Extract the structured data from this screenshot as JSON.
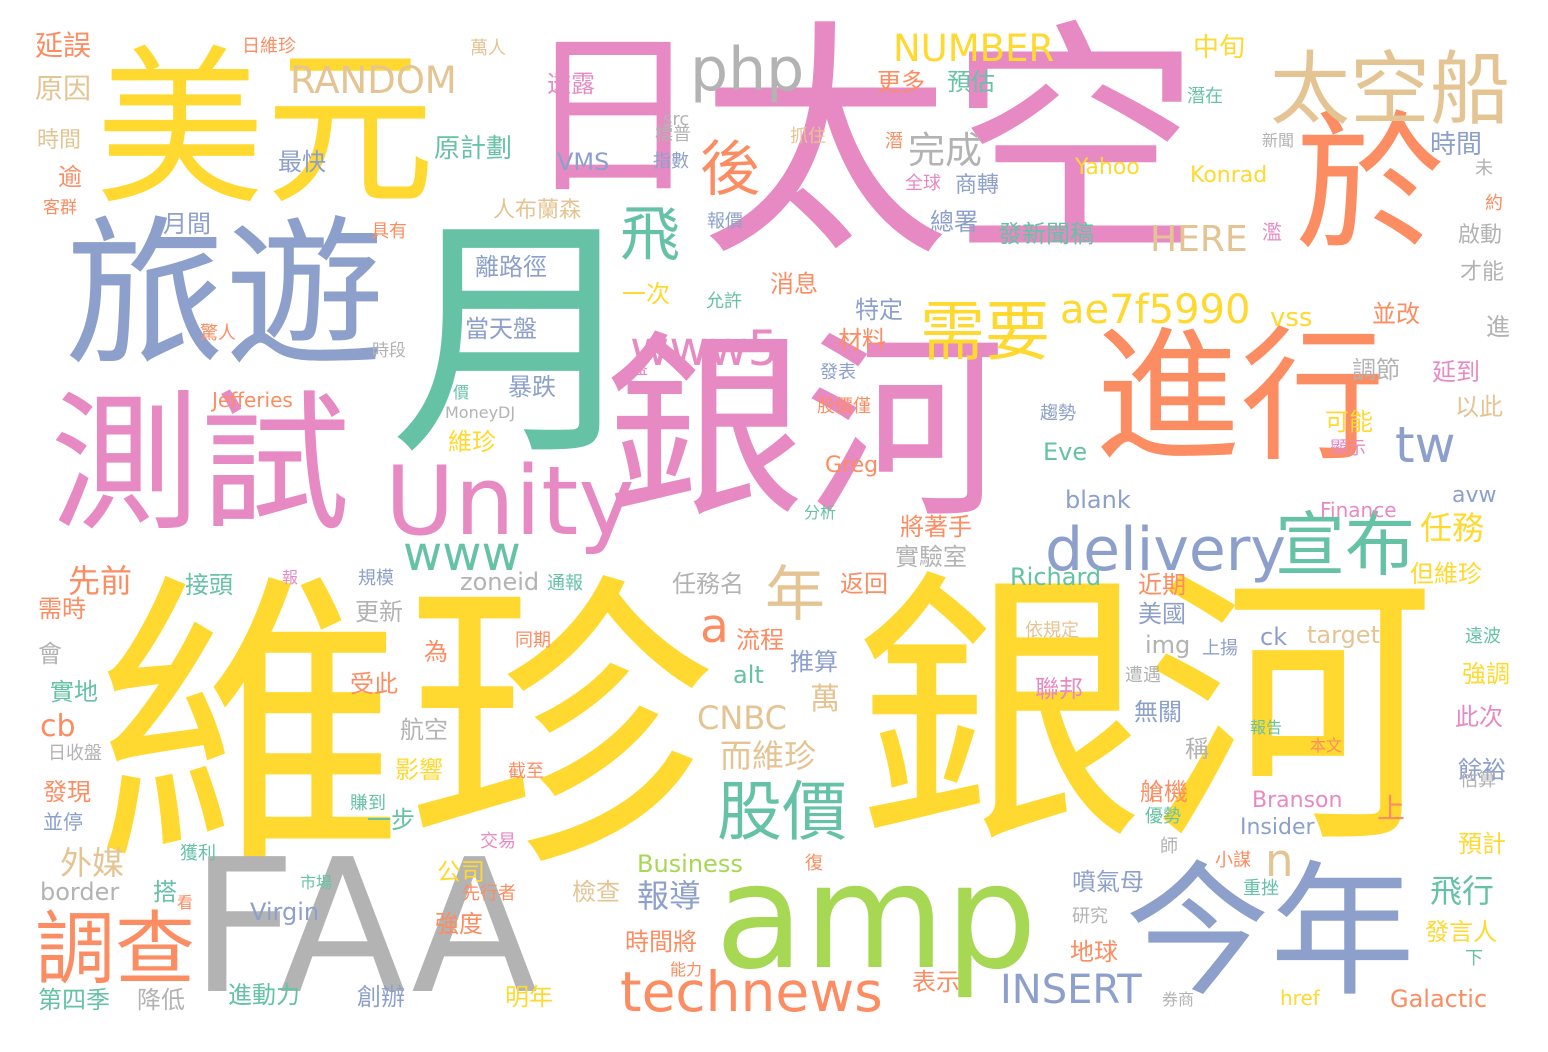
{
  "colors": {
    "yellow": "#ffd92f",
    "pink": "#e78ac3",
    "blue": "#8da0cb",
    "orange": "#fc8d62",
    "green": "#66c2a5",
    "lime": "#a6d854",
    "tan": "#e5c494",
    "gray": "#b3b3b3"
  },
  "words": [
    {
      "text": "維珍",
      "color": "yellow"
    },
    {
      "text": "銀河",
      "color": "yellow"
    },
    {
      "text": "太空",
      "color": "pink"
    },
    {
      "text": "銀河",
      "color": "pink"
    },
    {
      "text": "美元",
      "color": "yellow"
    },
    {
      "text": "旅遊",
      "color": "blue"
    },
    {
      "text": "月",
      "color": "green"
    },
    {
      "text": "日",
      "color": "pink"
    },
    {
      "text": "FAA",
      "color": "gray"
    },
    {
      "text": "amp",
      "color": "lime"
    },
    {
      "text": "進行",
      "color": "orange"
    },
    {
      "text": "於",
      "color": "orange"
    },
    {
      "text": "測試",
      "color": "pink"
    },
    {
      "text": "今年",
      "color": "blue"
    },
    {
      "text": "Unity",
      "color": "pink"
    },
    {
      "text": "太空船",
      "color": "tan"
    },
    {
      "text": "php",
      "color": "gray"
    },
    {
      "text": "technews",
      "color": "orange"
    },
    {
      "text": "調查",
      "color": "orange"
    },
    {
      "text": "delivery",
      "color": "blue"
    },
    {
      "text": "宣布",
      "color": "green"
    },
    {
      "text": "股價",
      "color": "green"
    },
    {
      "text": "www5",
      "color": "pink"
    },
    {
      "text": "www",
      "color": "green"
    },
    {
      "text": "需要",
      "color": "yellow"
    },
    {
      "text": "後",
      "color": "orange"
    },
    {
      "text": "飛",
      "color": "green"
    },
    {
      "text": "ae7f5990",
      "color": "yellow"
    },
    {
      "text": "RANDOM",
      "color": "tan"
    },
    {
      "text": "NUMBER",
      "color": "yellow"
    },
    {
      "text": "INSERT",
      "color": "blue"
    },
    {
      "text": "tw",
      "color": "blue"
    },
    {
      "text": "年",
      "color": "tan"
    },
    {
      "text": "a",
      "color": "orange"
    },
    {
      "text": "n",
      "color": "tan"
    },
    {
      "text": "完成",
      "color": "gray"
    },
    {
      "text": "HERE",
      "color": "tan"
    },
    {
      "text": "任務",
      "color": "yellow"
    },
    {
      "text": "報導",
      "color": "blue"
    },
    {
      "text": "飛行",
      "color": "green"
    },
    {
      "text": "CNBC",
      "color": "tan"
    },
    {
      "text": "而維珍",
      "color": "tan"
    },
    {
      "text": "先前",
      "color": "orange"
    },
    {
      "text": "外媒",
      "color": "tan"
    },
    {
      "text": "萬",
      "color": "tan"
    },
    {
      "text": "cb",
      "color": "orange"
    },
    {
      "text": "vss",
      "color": "yellow"
    },
    {
      "text": "上",
      "color": "orange"
    },
    {
      "text": "延誤",
      "color": "orange"
    },
    {
      "text": "原因",
      "color": "tan"
    },
    {
      "text": "日維珍",
      "color": "orange"
    },
    {
      "text": "萬人",
      "color": "tan"
    },
    {
      "text": "中旬",
      "color": "yellow"
    },
    {
      "text": "透露",
      "color": "pink"
    },
    {
      "text": "更多",
      "color": "orange"
    },
    {
      "text": "預估",
      "color": "green"
    },
    {
      "text": "時間",
      "color": "blue"
    },
    {
      "text": "src",
      "color": "gray"
    },
    {
      "text": "潛在",
      "color": "green"
    },
    {
      "text": "VMS",
      "color": "blue"
    },
    {
      "text": "指數",
      "color": "blue"
    },
    {
      "text": "標普",
      "color": "gray"
    },
    {
      "text": "抓住",
      "color": "tan"
    },
    {
      "text": "新聞",
      "color": "gray"
    },
    {
      "text": "潛",
      "color": "orange"
    },
    {
      "text": "最快",
      "color": "blue"
    },
    {
      "text": "原計劃",
      "color": "green"
    },
    {
      "text": "商轉",
      "color": "blue"
    },
    {
      "text": "Yahoo",
      "color": "yellow"
    },
    {
      "text": "Konrad",
      "color": "yellow"
    },
    {
      "text": "時間",
      "color": "tan"
    },
    {
      "text": "客群",
      "color": "orange"
    },
    {
      "text": "逾",
      "color": "orange"
    },
    {
      "text": "全球",
      "color": "pink"
    },
    {
      "text": "報價",
      "color": "blue"
    },
    {
      "text": "總署",
      "color": "blue"
    },
    {
      "text": "未",
      "color": "gray"
    },
    {
      "text": "約",
      "color": "orange"
    },
    {
      "text": "人布蘭森",
      "color": "tan"
    },
    {
      "text": "月間",
      "color": "blue"
    },
    {
      "text": "具有",
      "color": "orange"
    },
    {
      "text": "發新聞稿",
      "color": "green"
    },
    {
      "text": "濫",
      "color": "pink"
    },
    {
      "text": "啟動",
      "color": "gray"
    },
    {
      "text": "才能",
      "color": "gray"
    },
    {
      "text": "離路徑",
      "color": "blue"
    },
    {
      "text": "消息",
      "color": "orange"
    },
    {
      "text": "一次",
      "color": "yellow"
    },
    {
      "text": "允許",
      "color": "green"
    },
    {
      "text": "特定",
      "color": "blue"
    },
    {
      "text": "並改",
      "color": "orange"
    },
    {
      "text": "驚人",
      "color": "orange"
    },
    {
      "text": "當天盤",
      "color": "blue"
    },
    {
      "text": "材料",
      "color": "orange"
    },
    {
      "text": "時段",
      "color": "gray"
    },
    {
      "text": "進",
      "color": "gray"
    },
    {
      "text": "調節",
      "color": "gray"
    },
    {
      "text": "盤",
      "color": "pink"
    },
    {
      "text": "發表",
      "color": "blue"
    },
    {
      "text": "延到",
      "color": "pink"
    },
    {
      "text": "Jefferies",
      "color": "orange"
    },
    {
      "text": "價",
      "color": "green"
    },
    {
      "text": "暴跌",
      "color": "blue"
    },
    {
      "text": "股價僅",
      "color": "orange"
    },
    {
      "text": "以此",
      "color": "tan"
    },
    {
      "text": "MoneyDJ",
      "color": "gray"
    },
    {
      "text": "趨勢",
      "color": "blue"
    },
    {
      "text": "可能",
      "color": "yellow"
    },
    {
      "text": "維珍",
      "color": "yellow"
    },
    {
      "text": "Eve",
      "color": "green"
    },
    {
      "text": "顯示",
      "color": "pink"
    },
    {
      "text": "Greg",
      "color": "orange"
    },
    {
      "text": "blank",
      "color": "blue"
    },
    {
      "text": "avw",
      "color": "blue"
    },
    {
      "text": "分析",
      "color": "green"
    },
    {
      "text": "Finance",
      "color": "pink"
    },
    {
      "text": "將著手",
      "color": "orange"
    },
    {
      "text": "實驗室",
      "color": "gray"
    },
    {
      "text": "接頭",
      "color": "green"
    },
    {
      "text": "報",
      "color": "pink"
    },
    {
      "text": "規模",
      "color": "blue"
    },
    {
      "text": "zoneid",
      "color": "gray"
    },
    {
      "text": "通報",
      "color": "green"
    },
    {
      "text": "任務名",
      "color": "gray"
    },
    {
      "text": "返回",
      "color": "orange"
    },
    {
      "text": "Richard",
      "color": "green"
    },
    {
      "text": "近期",
      "color": "orange"
    },
    {
      "text": "但維珍",
      "color": "yellow"
    },
    {
      "text": "需時",
      "color": "orange"
    },
    {
      "text": "更新",
      "color": "gray"
    },
    {
      "text": "美國",
      "color": "blue"
    },
    {
      "text": "依規定",
      "color": "tan"
    },
    {
      "text": "ck",
      "color": "blue"
    },
    {
      "text": "target",
      "color": "tan"
    },
    {
      "text": "遠波",
      "color": "green"
    },
    {
      "text": "流程",
      "color": "orange"
    },
    {
      "text": "推算",
      "color": "blue"
    },
    {
      "text": "img",
      "color": "gray"
    },
    {
      "text": "上揚",
      "color": "blue"
    },
    {
      "text": "同期",
      "color": "orange"
    },
    {
      "text": "會",
      "color": "gray"
    },
    {
      "text": "為",
      "color": "orange"
    },
    {
      "text": "實地",
      "color": "green"
    },
    {
      "text": "受此",
      "color": "orange"
    },
    {
      "text": "alt",
      "color": "green"
    },
    {
      "text": "聯邦",
      "color": "pink"
    },
    {
      "text": "遭遇",
      "color": "gray"
    },
    {
      "text": "強調",
      "color": "yellow"
    },
    {
      "text": "航空",
      "color": "gray"
    },
    {
      "text": "無關",
      "color": "blue"
    },
    {
      "text": "此次",
      "color": "pink"
    },
    {
      "text": "報告",
      "color": "green"
    },
    {
      "text": "日收盤",
      "color": "gray"
    },
    {
      "text": "稱",
      "color": "gray"
    },
    {
      "text": "本文",
      "color": "orange"
    },
    {
      "text": "影響",
      "color": "yellow"
    },
    {
      "text": "截至",
      "color": "orange"
    },
    {
      "text": "餘裕",
      "color": "blue"
    },
    {
      "text": "發現",
      "color": "orange"
    },
    {
      "text": "艙機",
      "color": "orange"
    },
    {
      "text": "估算",
      "color": "gray"
    },
    {
      "text": "一步",
      "color": "green"
    },
    {
      "text": "賺到",
      "color": "green"
    },
    {
      "text": "Branson",
      "color": "pink"
    },
    {
      "text": "並停",
      "color": "blue"
    },
    {
      "text": "Insider",
      "color": "blue"
    },
    {
      "text": "交易",
      "color": "pink"
    },
    {
      "text": "優勢",
      "color": "green"
    },
    {
      "text": "預計",
      "color": "yellow"
    },
    {
      "text": "獲利",
      "color": "green"
    },
    {
      "text": "公司",
      "color": "yellow"
    },
    {
      "text": "師",
      "color": "gray"
    },
    {
      "text": "Business",
      "color": "lime"
    },
    {
      "text": "復",
      "color": "orange"
    },
    {
      "text": "噴氣母",
      "color": "blue"
    },
    {
      "text": "小謀",
      "color": "orange"
    },
    {
      "text": "border",
      "color": "gray"
    },
    {
      "text": "搭",
      "color": "green"
    },
    {
      "text": "市場",
      "color": "green"
    },
    {
      "text": "先行者",
      "color": "orange"
    },
    {
      "text": "檢查",
      "color": "tan"
    },
    {
      "text": "重挫",
      "color": "green"
    },
    {
      "text": "看",
      "color": "orange"
    },
    {
      "text": "Virgin",
      "color": "blue"
    },
    {
      "text": "研究",
      "color": "gray"
    },
    {
      "text": "強度",
      "color": "orange"
    },
    {
      "text": "時間將",
      "color": "orange"
    },
    {
      "text": "發言人",
      "color": "yellow"
    },
    {
      "text": "能力",
      "color": "orange"
    },
    {
      "text": "地球",
      "color": "orange"
    },
    {
      "text": "下",
      "color": "green"
    },
    {
      "text": "表示",
      "color": "orange"
    },
    {
      "text": "第四季",
      "color": "green"
    },
    {
      "text": "降低",
      "color": "gray"
    },
    {
      "text": "進動力",
      "color": "green"
    },
    {
      "text": "創辦",
      "color": "blue"
    },
    {
      "text": "明年",
      "color": "yellow"
    },
    {
      "text": "href",
      "color": "yellow"
    },
    {
      "text": "券商",
      "color": "gray"
    },
    {
      "text": "Galactic",
      "color": "orange"
    }
  ]
}
